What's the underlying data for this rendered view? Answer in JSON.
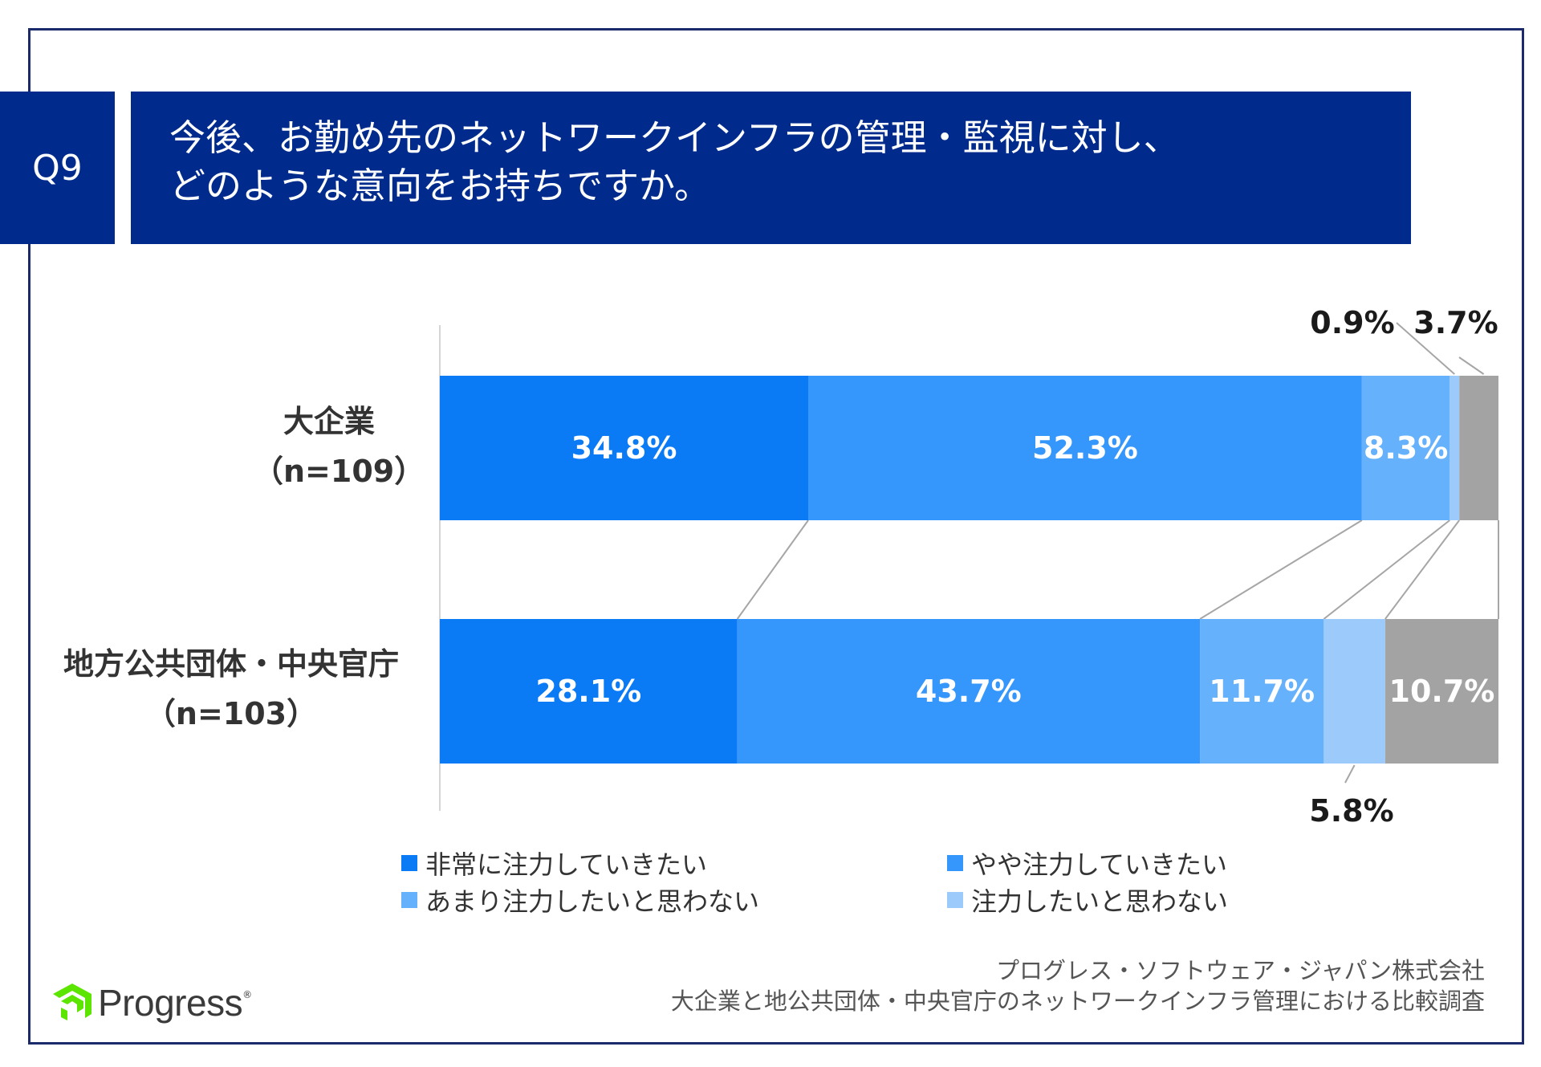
{
  "header": {
    "question_id": "Q9",
    "title_line1": "今後、お勤め先のネットワークインフラの管理・監視に対し、",
    "title_line2": "どのような意向をお持ちですか。"
  },
  "chart_data": {
    "type": "bar",
    "orientation": "horizontal",
    "stacked": "percent",
    "categories": [
      {
        "name": "大企業",
        "n": "（n=109）"
      },
      {
        "name": "地方公共団体・中央官庁",
        "n": "（n=103）"
      }
    ],
    "series": [
      {
        "name": "非常に注力していきたい",
        "color": "#0a7bf5",
        "values": [
          34.8,
          28.1
        ],
        "labels": [
          "34.8%",
          "28.1%"
        ]
      },
      {
        "name": "やや注力していきたい",
        "color": "#3596fb",
        "values": [
          52.3,
          43.7
        ],
        "labels": [
          "52.3%",
          "43.7%"
        ]
      },
      {
        "name": "あまり注力したいと思わない",
        "color": "#66b1fb",
        "values": [
          8.3,
          11.7
        ],
        "labels": [
          "8.3%",
          "11.7%"
        ]
      },
      {
        "name": "注力したいと思わない",
        "color": "#9ccafb",
        "values": [
          0.9,
          5.8
        ],
        "labels": [
          "0.9%",
          "5.8%"
        ]
      },
      {
        "name": "",
        "color": "#a3a3a3",
        "values": [
          3.7,
          10.7
        ],
        "labels": [
          "3.7%",
          "10.7%"
        ]
      }
    ],
    "xlim": [
      0,
      100
    ],
    "legend_position": "bottom",
    "grid": false
  },
  "footer": {
    "company": "プログレス・ソフトウェア・ジャパン株式会社",
    "survey": "大企業と地公共団体・中央官庁のネットワークインフラ管理における比較調査"
  },
  "logo": {
    "word": "Progress",
    "reg": "®",
    "icon": "progress-logo-icon",
    "color": "#5ce500"
  }
}
